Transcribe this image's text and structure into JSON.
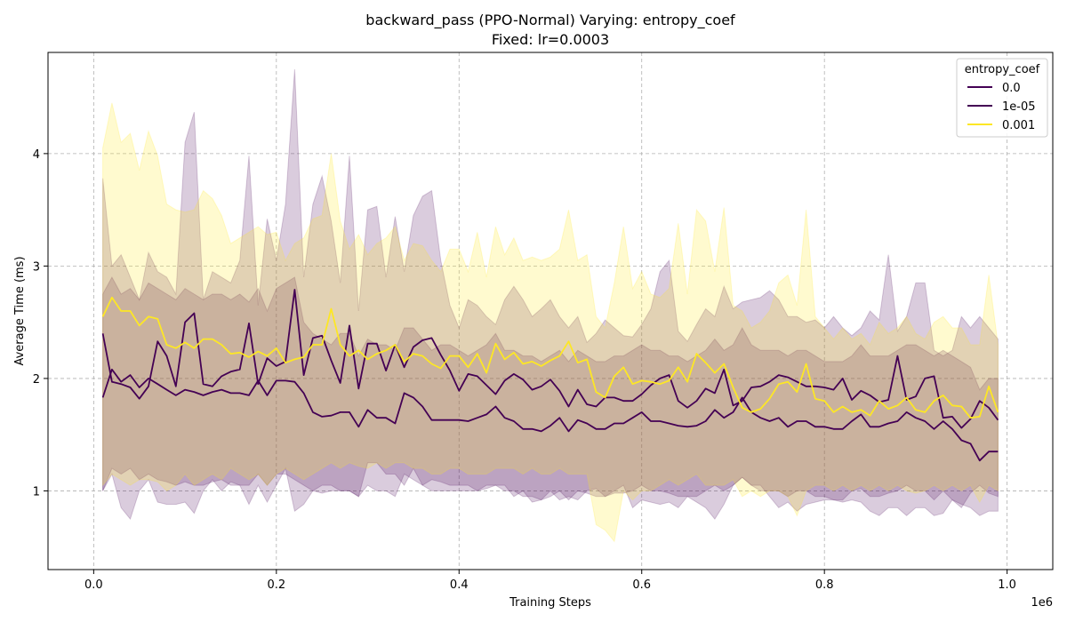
{
  "chart_data": {
    "type": "line",
    "title": "backward_pass (PPO-Normal) Varying: entropy_coef",
    "subtitle": "Fixed: lr=0.0003",
    "xlabel": "Training Steps",
    "ylabel": "Average Time (ms)",
    "x_offset_label": "1e6",
    "xlim": [
      -50000,
      1050000
    ],
    "ylim": [
      0.3,
      4.9
    ],
    "x_ticks": [
      0,
      200000,
      400000,
      600000,
      800000,
      1000000
    ],
    "x_tick_labels": [
      "0.0",
      "0.2",
      "0.4",
      "0.6",
      "0.8",
      "1.0"
    ],
    "y_ticks": [
      1,
      2,
      3,
      4
    ],
    "y_tick_labels": [
      "1",
      "2",
      "3",
      "4"
    ],
    "grid": true,
    "legend": {
      "title": "entropy_coef",
      "placement": "top-right"
    },
    "x": [
      10000,
      20000,
      30000,
      40000,
      50000,
      60000,
      70000,
      80000,
      90000,
      100000,
      110000,
      120000,
      130000,
      140000,
      150000,
      160000,
      170000,
      180000,
      190000,
      200000,
      210000,
      220000,
      230000,
      240000,
      250000,
      260000,
      270000,
      280000,
      290000,
      300000,
      310000,
      320000,
      330000,
      340000,
      350000,
      360000,
      370000,
      380000,
      390000,
      400000,
      410000,
      420000,
      430000,
      440000,
      450000,
      460000,
      470000,
      480000,
      490000,
      500000,
      510000,
      520000,
      530000,
      540000,
      550000,
      560000,
      570000,
      580000,
      590000,
      600000,
      610000,
      620000,
      630000,
      640000,
      650000,
      660000,
      670000,
      680000,
      690000,
      700000,
      710000,
      720000,
      730000,
      740000,
      750000,
      760000,
      770000,
      780000,
      790000,
      800000,
      810000,
      820000,
      830000,
      840000,
      850000,
      860000,
      870000,
      880000,
      890000,
      900000,
      910000,
      920000,
      930000,
      940000,
      950000,
      960000,
      970000,
      980000,
      990000
    ],
    "series": [
      {
        "name": "0.0",
        "color": "#440154",
        "band_color": "#440154",
        "band_opacity": 0.2,
        "mean": [
          2.4,
          1.97,
          1.95,
          1.92,
          1.82,
          1.93,
          2.33,
          2.2,
          1.93,
          2.5,
          2.58,
          1.95,
          1.93,
          2.02,
          2.06,
          2.08,
          2.49,
          1.95,
          2.18,
          2.11,
          2.15,
          2.79,
          2.03,
          2.36,
          2.38,
          2.16,
          1.96,
          2.47,
          1.91,
          2.31,
          2.31,
          2.07,
          2.3,
          2.1,
          2.28,
          2.34,
          2.36,
          2.21,
          2.07,
          1.89,
          2.04,
          2.02,
          1.94,
          1.86,
          1.98,
          2.04,
          1.99,
          1.9,
          1.93,
          1.99,
          1.89,
          1.75,
          1.9,
          1.77,
          1.75,
          1.83,
          1.83,
          1.8,
          1.8,
          1.86,
          1.94,
          2.0,
          2.03,
          1.8,
          1.74,
          1.8,
          1.91,
          1.87,
          2.08,
          1.76,
          1.8,
          1.92,
          1.93,
          1.97,
          2.03,
          2.01,
          1.97,
          1.93,
          1.93,
          1.92,
          1.9,
          2.0,
          1.81,
          1.89,
          1.85,
          1.79,
          1.81,
          2.2,
          1.81,
          1.84,
          2.0,
          2.02,
          1.65,
          1.66,
          1.56,
          1.64,
          1.8,
          1.74,
          1.63
        ],
        "upper": [
          3.78,
          3.0,
          3.1,
          2.9,
          2.7,
          3.12,
          2.95,
          2.9,
          2.75,
          4.1,
          4.37,
          2.7,
          2.95,
          2.9,
          2.85,
          3.05,
          3.98,
          2.65,
          3.42,
          3.05,
          3.55,
          4.75,
          2.9,
          3.55,
          3.8,
          3.4,
          2.85,
          3.98,
          2.6,
          3.5,
          3.53,
          2.9,
          3.44,
          2.95,
          3.45,
          3.62,
          3.67,
          3.05,
          2.65,
          2.45,
          2.7,
          2.65,
          2.55,
          2.48,
          2.7,
          2.82,
          2.7,
          2.55,
          2.62,
          2.7,
          2.55,
          2.45,
          2.55,
          2.32,
          2.4,
          2.52,
          2.45,
          2.38,
          2.37,
          2.48,
          2.62,
          2.95,
          3.05,
          2.42,
          2.33,
          2.48,
          2.62,
          2.55,
          2.82,
          2.62,
          2.68,
          2.7,
          2.72,
          2.78,
          2.7,
          2.55,
          2.55,
          2.5,
          2.52,
          2.45,
          2.55,
          2.45,
          2.38,
          2.45,
          2.6,
          2.52,
          3.1,
          2.42,
          2.55,
          2.85,
          2.85,
          2.25,
          2.2,
          2.25,
          2.55,
          2.45,
          2.55,
          2.45,
          2.35
        ],
        "lower": [
          1.0,
          1.15,
          0.85,
          0.75,
          1.0,
          1.1,
          0.9,
          0.88,
          0.88,
          0.9,
          0.8,
          1.0,
          1.1,
          1.0,
          1.08,
          1.05,
          0.88,
          1.05,
          0.9,
          1.05,
          1.2,
          0.82,
          0.88,
          1.0,
          1.05,
          1.05,
          1.0,
          1.0,
          0.95,
          1.25,
          1.25,
          1.15,
          1.15,
          1.05,
          1.2,
          1.05,
          1.1,
          1.08,
          1.05,
          1.05,
          1.05,
          1.0,
          1.05,
          1.05,
          1.05,
          0.95,
          1.0,
          0.9,
          0.92,
          1.0,
          0.92,
          0.95,
          0.92,
          1.0,
          1.02,
          0.95,
          1.0,
          1.05,
          0.85,
          0.92,
          0.9,
          0.88,
          0.9,
          0.85,
          0.95,
          0.9,
          0.85,
          0.75,
          0.88,
          1.05,
          1.12,
          1.05,
          1.05,
          0.95,
          0.85,
          0.9,
          0.82,
          0.88,
          0.9,
          0.92,
          0.92,
          0.9,
          0.92,
          0.9,
          0.82,
          0.78,
          0.85,
          0.85,
          0.78,
          0.85,
          0.85,
          0.78,
          0.8,
          0.92,
          0.85,
          0.98,
          1.05,
          0.98,
          0.95
        ]
      },
      {
        "name": "1e-05",
        "color": "#440154",
        "band_color": "#440154",
        "band_opacity": 0.2,
        "mean": [
          1.83,
          2.08,
          1.97,
          2.03,
          1.92,
          2.0,
          1.95,
          1.9,
          1.85,
          1.9,
          1.88,
          1.85,
          1.88,
          1.9,
          1.87,
          1.87,
          1.85,
          1.98,
          1.85,
          1.98,
          1.98,
          1.97,
          1.87,
          1.7,
          1.66,
          1.67,
          1.7,
          1.7,
          1.57,
          1.72,
          1.65,
          1.65,
          1.6,
          1.87,
          1.83,
          1.75,
          1.63,
          1.63,
          1.63,
          1.63,
          1.62,
          1.65,
          1.68,
          1.75,
          1.65,
          1.62,
          1.55,
          1.55,
          1.53,
          1.58,
          1.65,
          1.53,
          1.63,
          1.6,
          1.55,
          1.55,
          1.6,
          1.6,
          1.65,
          1.7,
          1.62,
          1.62,
          1.6,
          1.58,
          1.57,
          1.58,
          1.62,
          1.72,
          1.65,
          1.7,
          1.83,
          1.7,
          1.65,
          1.62,
          1.65,
          1.57,
          1.62,
          1.62,
          1.57,
          1.57,
          1.55,
          1.55,
          1.62,
          1.68,
          1.57,
          1.57,
          1.6,
          1.62,
          1.7,
          1.65,
          1.62,
          1.55,
          1.62,
          1.55,
          1.45,
          1.42,
          1.27,
          1.35,
          1.35
        ],
        "upper": [
          2.75,
          2.9,
          2.75,
          2.8,
          2.7,
          2.85,
          2.8,
          2.75,
          2.7,
          2.8,
          2.75,
          2.7,
          2.75,
          2.75,
          2.7,
          2.75,
          2.68,
          2.8,
          2.6,
          2.8,
          2.85,
          2.9,
          2.5,
          2.4,
          2.35,
          2.3,
          2.4,
          2.4,
          2.2,
          2.35,
          2.3,
          2.3,
          2.25,
          2.45,
          2.45,
          2.35,
          2.25,
          2.3,
          2.3,
          2.25,
          2.2,
          2.25,
          2.3,
          2.4,
          2.25,
          2.25,
          2.2,
          2.2,
          2.15,
          2.2,
          2.25,
          2.15,
          2.25,
          2.2,
          2.15,
          2.15,
          2.2,
          2.2,
          2.25,
          2.3,
          2.25,
          2.25,
          2.2,
          2.2,
          2.15,
          2.2,
          2.25,
          2.35,
          2.25,
          2.3,
          2.45,
          2.3,
          2.25,
          2.25,
          2.25,
          2.2,
          2.25,
          2.25,
          2.2,
          2.15,
          2.15,
          2.15,
          2.2,
          2.3,
          2.2,
          2.2,
          2.2,
          2.25,
          2.3,
          2.3,
          2.25,
          2.2,
          2.25,
          2.2,
          2.15,
          2.1,
          1.9,
          2.0,
          2.0
        ],
        "lower": [
          1.0,
          1.2,
          1.15,
          1.2,
          1.1,
          1.15,
          1.1,
          1.08,
          1.05,
          1.08,
          1.05,
          1.05,
          1.08,
          1.1,
          1.05,
          1.05,
          1.05,
          1.15,
          1.05,
          1.15,
          1.15,
          1.1,
          1.05,
          1.0,
          0.98,
          1.0,
          1.0,
          1.0,
          0.95,
          1.05,
          1.0,
          1.0,
          0.95,
          1.15,
          1.1,
          1.05,
          1.0,
          1.0,
          1.0,
          1.0,
          1.0,
          1.0,
          1.02,
          1.05,
          1.0,
          1.0,
          0.95,
          0.95,
          0.92,
          0.95,
          1.0,
          0.92,
          1.0,
          0.98,
          0.95,
          0.95,
          0.98,
          0.98,
          1.0,
          1.05,
          1.0,
          1.0,
          0.98,
          0.95,
          0.95,
          0.95,
          1.0,
          1.05,
          1.0,
          1.05,
          1.12,
          1.05,
          1.0,
          1.0,
          1.0,
          0.95,
          1.0,
          1.0,
          0.95,
          0.95,
          0.92,
          0.92,
          1.0,
          1.02,
          0.95,
          0.95,
          0.98,
          1.0,
          1.05,
          1.0,
          1.0,
          0.92,
          1.0,
          0.92,
          0.88,
          0.85,
          0.78,
          0.82,
          0.82
        ]
      },
      {
        "name": "0.001",
        "color": "#fde725",
        "band_color": "#fde725",
        "band_opacity": 0.22,
        "mean": [
          2.55,
          2.72,
          2.6,
          2.6,
          2.47,
          2.55,
          2.53,
          2.3,
          2.27,
          2.32,
          2.27,
          2.35,
          2.35,
          2.3,
          2.22,
          2.23,
          2.19,
          2.24,
          2.2,
          2.27,
          2.14,
          2.17,
          2.19,
          2.3,
          2.3,
          2.62,
          2.3,
          2.2,
          2.25,
          2.17,
          2.22,
          2.25,
          2.3,
          2.15,
          2.22,
          2.2,
          2.13,
          2.09,
          2.2,
          2.2,
          2.1,
          2.22,
          2.05,
          2.31,
          2.17,
          2.23,
          2.13,
          2.15,
          2.11,
          2.16,
          2.2,
          2.33,
          2.14,
          2.17,
          1.88,
          1.83,
          2.02,
          2.1,
          1.95,
          1.98,
          1.97,
          1.95,
          1.98,
          2.1,
          1.97,
          2.22,
          2.14,
          2.05,
          2.13,
          1.92,
          1.74,
          1.7,
          1.73,
          1.82,
          1.95,
          1.97,
          1.88,
          2.13,
          1.82,
          1.8,
          1.7,
          1.75,
          1.7,
          1.72,
          1.67,
          1.8,
          1.73,
          1.76,
          1.83,
          1.72,
          1.7,
          1.8,
          1.85,
          1.76,
          1.75,
          1.65,
          1.66,
          1.93,
          1.7
        ],
        "upper": [
          4.05,
          4.45,
          4.1,
          4.18,
          3.85,
          4.2,
          3.98,
          3.55,
          3.5,
          3.48,
          3.5,
          3.67,
          3.6,
          3.45,
          3.2,
          3.25,
          3.3,
          3.35,
          3.28,
          3.3,
          3.05,
          3.2,
          3.25,
          3.42,
          3.45,
          4.0,
          3.4,
          3.15,
          3.28,
          3.1,
          3.2,
          3.25,
          3.35,
          3.05,
          3.2,
          3.18,
          3.05,
          2.95,
          3.15,
          3.15,
          2.95,
          3.3,
          2.9,
          3.35,
          3.1,
          3.25,
          3.05,
          3.08,
          3.05,
          3.08,
          3.15,
          3.5,
          3.05,
          3.1,
          2.55,
          2.45,
          2.85,
          3.35,
          2.8,
          2.95,
          2.75,
          2.72,
          2.8,
          3.38,
          2.75,
          3.5,
          3.4,
          2.95,
          3.52,
          2.65,
          2.6,
          2.45,
          2.5,
          2.6,
          2.85,
          2.92,
          2.65,
          3.5,
          2.55,
          2.45,
          2.35,
          2.45,
          2.35,
          2.4,
          2.3,
          2.5,
          2.4,
          2.45,
          2.55,
          2.4,
          2.35,
          2.5,
          2.55,
          2.45,
          2.45,
          2.3,
          2.3,
          2.92,
          2.3
        ],
        "lower": [
          1.05,
          1.15,
          1.1,
          1.05,
          1.1,
          1.1,
          1.08,
          1.0,
          1.05,
          1.15,
          1.05,
          1.1,
          1.15,
          1.1,
          1.2,
          1.15,
          1.1,
          1.15,
          1.05,
          1.15,
          1.2,
          1.15,
          1.1,
          1.15,
          1.2,
          1.25,
          1.2,
          1.25,
          1.22,
          1.2,
          1.25,
          1.2,
          1.25,
          1.25,
          1.2,
          1.2,
          1.15,
          1.15,
          1.2,
          1.2,
          1.15,
          1.15,
          1.15,
          1.2,
          1.2,
          1.2,
          1.15,
          1.2,
          1.15,
          1.15,
          1.2,
          1.15,
          1.15,
          1.15,
          0.7,
          0.65,
          0.55,
          1.0,
          0.92,
          1.0,
          1.0,
          1.05,
          1.1,
          1.05,
          1.1,
          1.15,
          1.05,
          1.05,
          1.05,
          1.1,
          0.95,
          1.0,
          0.95,
          1.0,
          1.0,
          0.95,
          0.78,
          1.0,
          1.05,
          1.05,
          1.0,
          1.05,
          1.0,
          1.05,
          1.0,
          1.05,
          1.0,
          1.05,
          1.0,
          0.98,
          1.0,
          1.05,
          1.0,
          1.05,
          1.0,
          1.05,
          0.9,
          1.05,
          1.0
        ]
      }
    ]
  }
}
